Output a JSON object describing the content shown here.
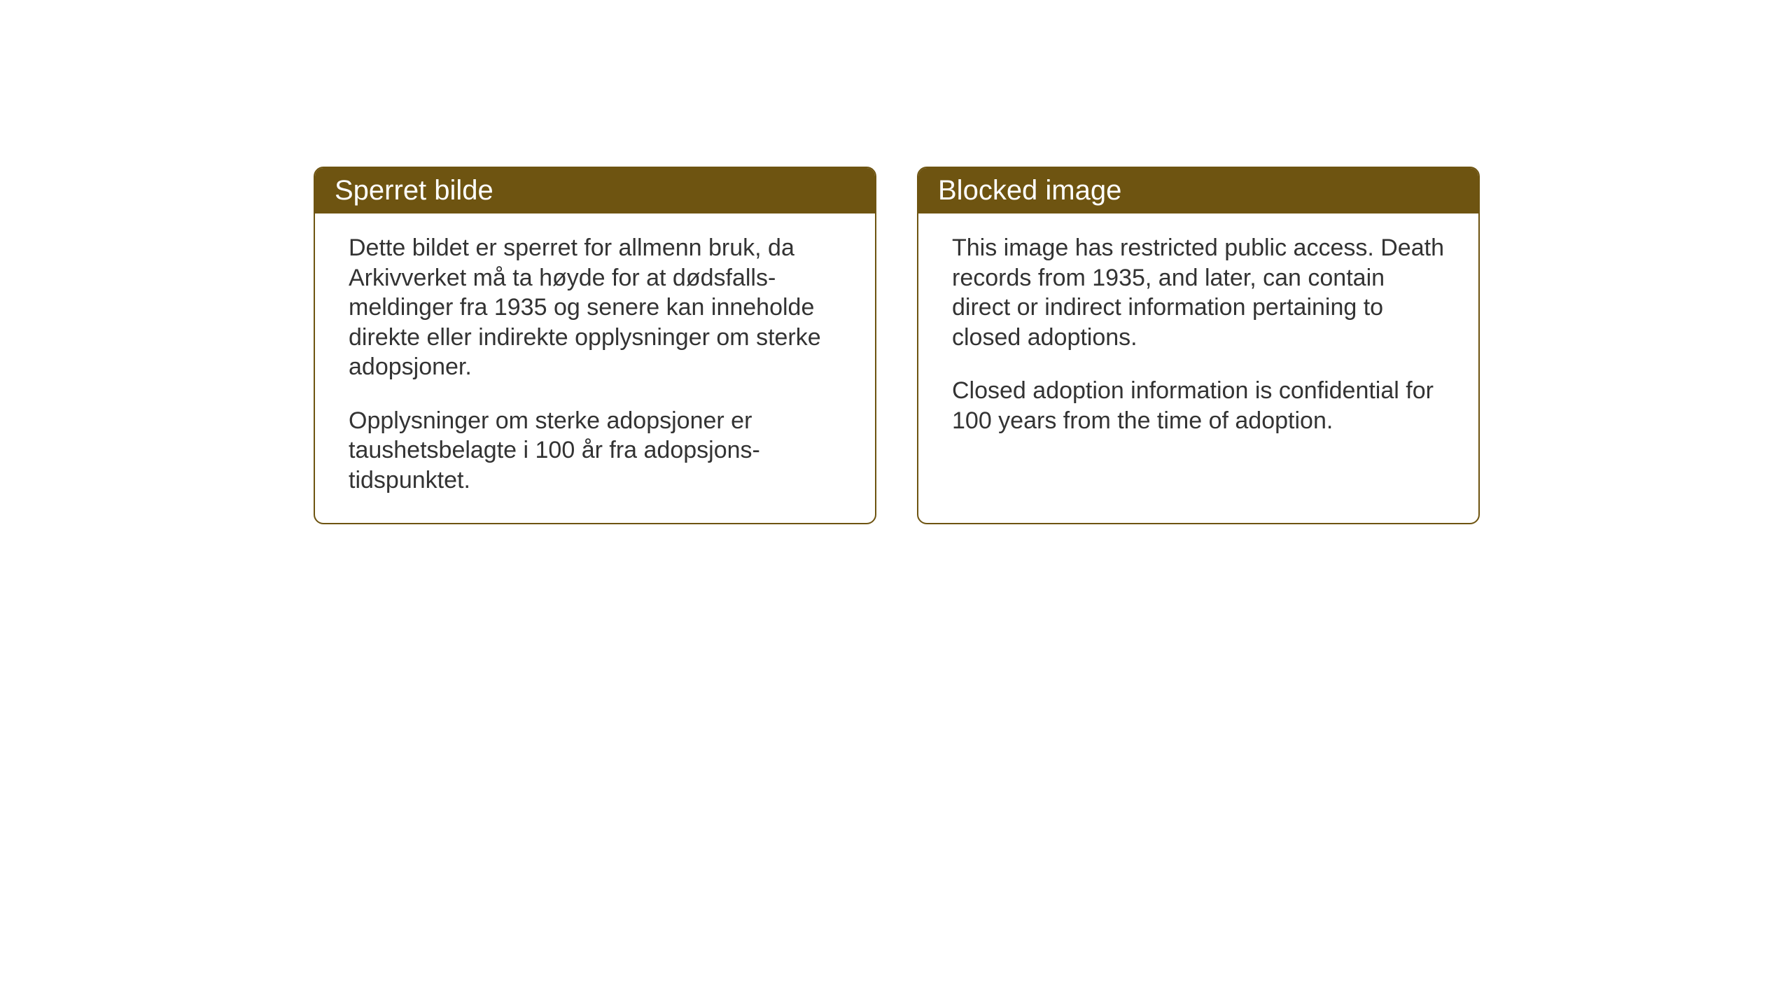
{
  "layout": {
    "background_color": "#ffffff",
    "card_border_color": "#6e5411",
    "header_background_color": "#6e5411",
    "header_text_color": "#ffffff",
    "body_text_color": "#333333",
    "card_border_radius": 14,
    "header_fontsize": 40,
    "body_fontsize": 34
  },
  "cards": {
    "norwegian": {
      "title": "Sperret bilde",
      "paragraph1": "Dette bildet er sperret for allmenn bruk, da Arkivverket må ta høyde for at dødsfalls-meldinger fra 1935 og senere kan inneholde direkte eller indirekte opplysninger om sterke adopsjoner.",
      "paragraph2": "Opplysninger om sterke adopsjoner er taushetsbelagte i 100 år fra adopsjons-tidspunktet."
    },
    "english": {
      "title": "Blocked image",
      "paragraph1": "This image has restricted public access. Death records from 1935, and later, can contain direct or indirect information pertaining to closed adoptions.",
      "paragraph2": "Closed adoption information is confidential for 100 years from the time of adoption."
    }
  }
}
